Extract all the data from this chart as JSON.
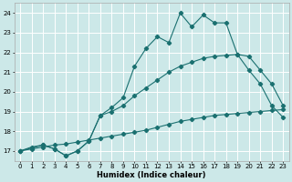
{
  "xlabel": "Humidex (Indice chaleur)",
  "background_color": "#cce8e8",
  "grid_color": "#ffffff",
  "line_color": "#1a7070",
  "xlim": [
    -0.5,
    23.5
  ],
  "ylim": [
    16.5,
    24.5
  ],
  "xticks": [
    0,
    1,
    2,
    3,
    4,
    5,
    6,
    7,
    8,
    9,
    10,
    11,
    12,
    13,
    14,
    15,
    16,
    17,
    18,
    19,
    20,
    21,
    22,
    23
  ],
  "yticks": [
    17,
    18,
    19,
    20,
    21,
    22,
    23,
    24
  ],
  "line1_x": [
    0,
    1,
    2,
    3,
    4,
    5,
    6,
    7,
    8,
    9,
    10,
    11,
    12,
    13,
    14,
    15,
    16,
    17,
    18,
    19,
    20,
    21,
    22,
    23
  ],
  "line1_y": [
    17.0,
    17.2,
    17.3,
    17.1,
    16.75,
    17.0,
    17.5,
    18.8,
    19.2,
    19.7,
    21.3,
    22.2,
    22.8,
    22.5,
    24.0,
    23.3,
    23.9,
    23.5,
    23.5,
    21.9,
    21.1,
    20.4,
    19.3,
    18.7
  ],
  "line2_x": [
    0,
    2,
    3,
    4,
    5,
    6,
    7,
    8,
    9,
    10,
    11,
    12,
    13,
    14,
    15,
    16,
    17,
    18,
    19,
    20,
    21,
    22,
    23
  ],
  "line2_y": [
    17.0,
    17.3,
    17.1,
    16.75,
    17.0,
    17.5,
    18.8,
    19.0,
    19.3,
    19.8,
    20.2,
    20.6,
    21.0,
    21.3,
    21.5,
    21.7,
    21.8,
    21.85,
    21.9,
    21.8,
    21.1,
    20.4,
    19.3
  ],
  "line3_x": [
    0,
    1,
    2,
    3,
    4,
    5,
    6,
    7,
    8,
    9,
    10,
    11,
    12,
    13,
    14,
    15,
    16,
    17,
    18,
    19,
    20,
    21,
    22,
    23
  ],
  "line3_y": [
    17.0,
    17.1,
    17.2,
    17.3,
    17.35,
    17.45,
    17.55,
    17.65,
    17.75,
    17.85,
    17.95,
    18.05,
    18.2,
    18.35,
    18.5,
    18.6,
    18.7,
    18.8,
    18.85,
    18.9,
    18.95,
    19.0,
    19.05,
    19.1
  ]
}
